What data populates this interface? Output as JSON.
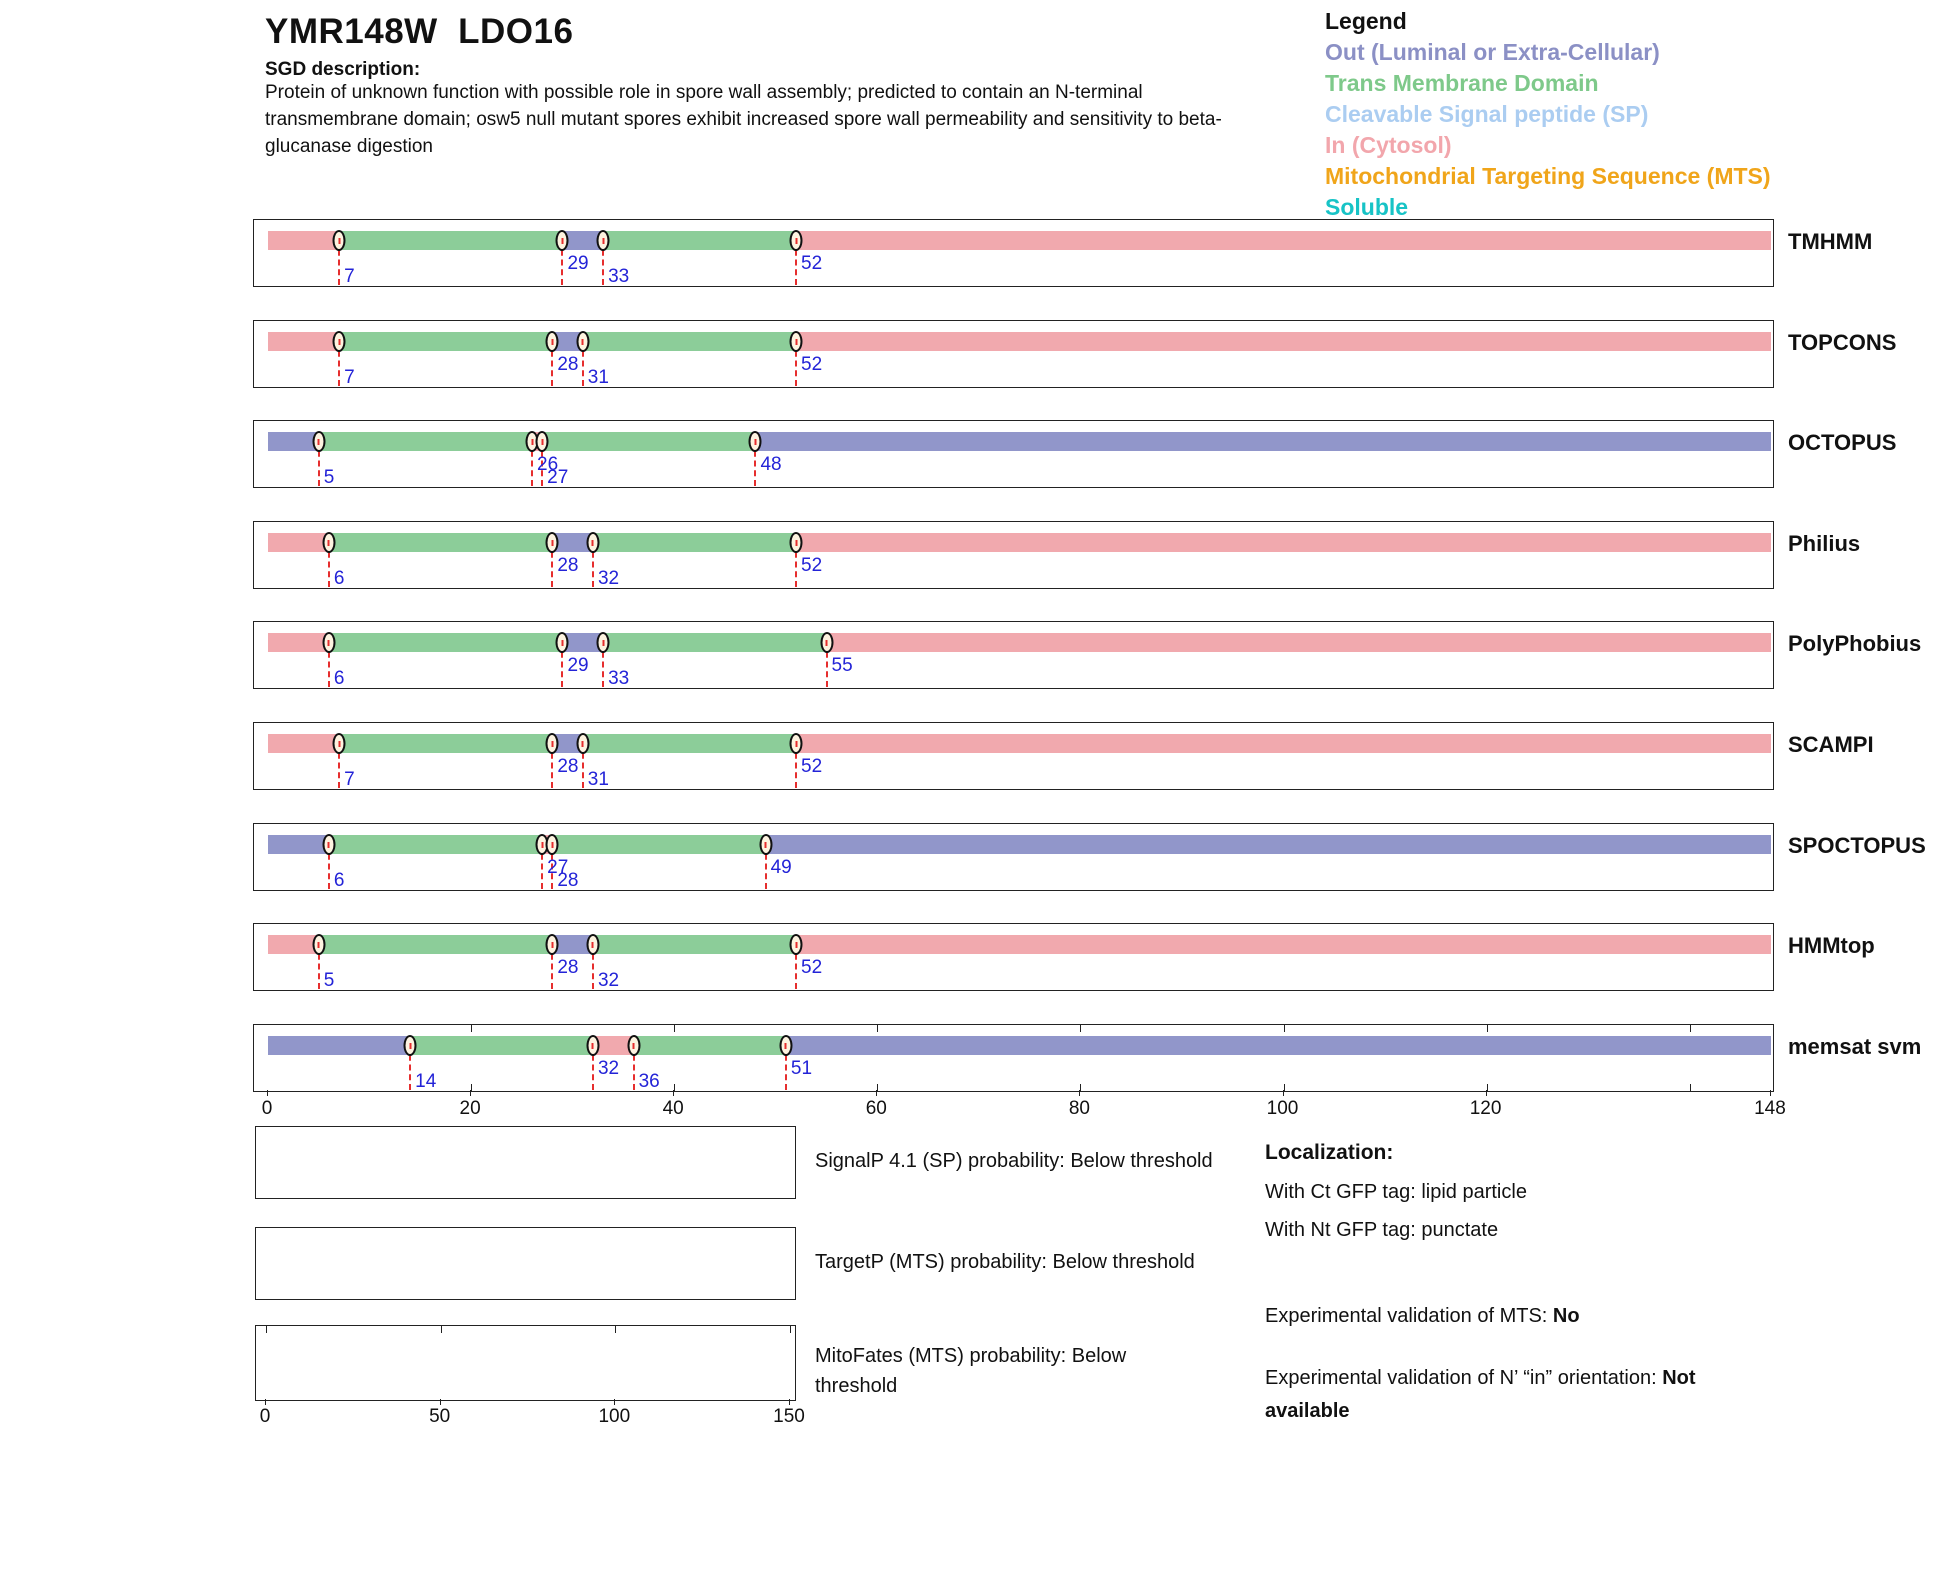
{
  "header": {
    "title": "YMR148W  LDO16",
    "sgd_label": "SGD description:",
    "description": "Protein of unknown function with possible role in spore wall assembly; predicted to contain an N-terminal transmembrane domain; osw5 null mutant spores exhibit increased spore wall permeability and sensitivity to beta-glucanase digestion"
  },
  "legend": {
    "title": "Legend",
    "items": [
      {
        "key": "out",
        "label": "Out (Luminal or Extra-Cellular)",
        "color": "#8b90c5"
      },
      {
        "key": "tm",
        "label": "Trans Membrane Domain",
        "color": "#7ec98a"
      },
      {
        "key": "sp",
        "label": "Cleavable Signal peptide (SP)",
        "color": "#abcdf1"
      },
      {
        "key": "in",
        "label": "In (Cytosol)",
        "color": "#f2a6ac"
      },
      {
        "key": "mts",
        "label": "Mitochondrial Targeting Sequence (MTS)",
        "color": "#f0a51a"
      },
      {
        "key": "soluble",
        "label": "Soluble",
        "color": "#17c3c6"
      }
    ]
  },
  "chart_data": {
    "type": "topology-tracks",
    "x_axis": {
      "min": 0,
      "max": 148,
      "ticks": [
        0,
        20,
        40,
        60,
        80,
        100,
        120,
        148
      ]
    },
    "segment_colors": {
      "in": "#f1a9ae",
      "tm": "#8ccd99",
      "out": "#9196ca"
    },
    "marker_style": {
      "line_color": "#e62e2e",
      "number_color": "#2323d7",
      "dot_fill": "#fdf3e0"
    },
    "tracks": [
      {
        "name": "TMHMM",
        "segments": [
          {
            "type": "in",
            "start": 0,
            "end": 7
          },
          {
            "type": "tm",
            "start": 7,
            "end": 29
          },
          {
            "type": "out",
            "start": 29,
            "end": 33
          },
          {
            "type": "tm",
            "start": 33,
            "end": 52
          },
          {
            "type": "in",
            "start": 52,
            "end": 148
          }
        ],
        "markers": [
          {
            "pos": 7,
            "level": "low"
          },
          {
            "pos": 29,
            "level": "high"
          },
          {
            "pos": 33,
            "level": "low"
          },
          {
            "pos": 52,
            "level": "high"
          }
        ]
      },
      {
        "name": "TOPCONS",
        "segments": [
          {
            "type": "in",
            "start": 0,
            "end": 7
          },
          {
            "type": "tm",
            "start": 7,
            "end": 28
          },
          {
            "type": "out",
            "start": 28,
            "end": 31
          },
          {
            "type": "tm",
            "start": 31,
            "end": 52
          },
          {
            "type": "in",
            "start": 52,
            "end": 148
          }
        ],
        "markers": [
          {
            "pos": 7,
            "level": "low"
          },
          {
            "pos": 28,
            "level": "high"
          },
          {
            "pos": 31,
            "level": "low"
          },
          {
            "pos": 52,
            "level": "high"
          }
        ]
      },
      {
        "name": "OCTOPUS",
        "segments": [
          {
            "type": "out",
            "start": 0,
            "end": 5
          },
          {
            "type": "tm",
            "start": 5,
            "end": 26
          },
          {
            "type": "in",
            "start": 26,
            "end": 27
          },
          {
            "type": "tm",
            "start": 27,
            "end": 48
          },
          {
            "type": "out",
            "start": 48,
            "end": 148
          }
        ],
        "markers": [
          {
            "pos": 5,
            "level": "low"
          },
          {
            "pos": 26,
            "level": "high"
          },
          {
            "pos": 27,
            "level": "low"
          },
          {
            "pos": 48,
            "level": "high"
          }
        ]
      },
      {
        "name": "Philius",
        "segments": [
          {
            "type": "in",
            "start": 0,
            "end": 6
          },
          {
            "type": "tm",
            "start": 6,
            "end": 28
          },
          {
            "type": "out",
            "start": 28,
            "end": 32
          },
          {
            "type": "tm",
            "start": 32,
            "end": 52
          },
          {
            "type": "in",
            "start": 52,
            "end": 148
          }
        ],
        "markers": [
          {
            "pos": 6,
            "level": "low"
          },
          {
            "pos": 28,
            "level": "high"
          },
          {
            "pos": 32,
            "level": "low"
          },
          {
            "pos": 52,
            "level": "high"
          }
        ]
      },
      {
        "name": "PolyPhobius",
        "segments": [
          {
            "type": "in",
            "start": 0,
            "end": 6
          },
          {
            "type": "tm",
            "start": 6,
            "end": 29
          },
          {
            "type": "out",
            "start": 29,
            "end": 33
          },
          {
            "type": "tm",
            "start": 33,
            "end": 55
          },
          {
            "type": "in",
            "start": 55,
            "end": 148
          }
        ],
        "markers": [
          {
            "pos": 6,
            "level": "low"
          },
          {
            "pos": 29,
            "level": "high"
          },
          {
            "pos": 33,
            "level": "low"
          },
          {
            "pos": 55,
            "level": "high"
          }
        ]
      },
      {
        "name": "SCAMPI",
        "segments": [
          {
            "type": "in",
            "start": 0,
            "end": 7
          },
          {
            "type": "tm",
            "start": 7,
            "end": 28
          },
          {
            "type": "out",
            "start": 28,
            "end": 31
          },
          {
            "type": "tm",
            "start": 31,
            "end": 52
          },
          {
            "type": "in",
            "start": 52,
            "end": 148
          }
        ],
        "markers": [
          {
            "pos": 7,
            "level": "low"
          },
          {
            "pos": 28,
            "level": "high"
          },
          {
            "pos": 31,
            "level": "low"
          },
          {
            "pos": 52,
            "level": "high"
          }
        ]
      },
      {
        "name": "SPOCTOPUS",
        "segments": [
          {
            "type": "out",
            "start": 0,
            "end": 6
          },
          {
            "type": "tm",
            "start": 6,
            "end": 27
          },
          {
            "type": "in",
            "start": 27,
            "end": 28
          },
          {
            "type": "tm",
            "start": 28,
            "end": 49
          },
          {
            "type": "out",
            "start": 49,
            "end": 148
          }
        ],
        "markers": [
          {
            "pos": 6,
            "level": "low"
          },
          {
            "pos": 27,
            "level": "high"
          },
          {
            "pos": 28,
            "level": "low"
          },
          {
            "pos": 49,
            "level": "high"
          }
        ]
      },
      {
        "name": "HMMtop",
        "segments": [
          {
            "type": "in",
            "start": 0,
            "end": 5
          },
          {
            "type": "tm",
            "start": 5,
            "end": 28
          },
          {
            "type": "out",
            "start": 28,
            "end": 32
          },
          {
            "type": "tm",
            "start": 32,
            "end": 52
          },
          {
            "type": "in",
            "start": 52,
            "end": 148
          }
        ],
        "markers": [
          {
            "pos": 5,
            "level": "low"
          },
          {
            "pos": 28,
            "level": "high"
          },
          {
            "pos": 32,
            "level": "low"
          },
          {
            "pos": 52,
            "level": "high"
          }
        ]
      },
      {
        "name": "memsat svm",
        "has_ruler": true,
        "segments": [
          {
            "type": "out",
            "start": 0,
            "end": 14
          },
          {
            "type": "tm",
            "start": 14,
            "end": 32
          },
          {
            "type": "in",
            "start": 32,
            "end": 36
          },
          {
            "type": "tm",
            "start": 36,
            "end": 51
          },
          {
            "type": "out",
            "start": 51,
            "end": 148
          }
        ],
        "markers": [
          {
            "pos": 14,
            "level": "low"
          },
          {
            "pos": 32,
            "level": "high"
          },
          {
            "pos": 36,
            "level": "low"
          },
          {
            "pos": 51,
            "level": "high"
          }
        ]
      }
    ]
  },
  "probability_plots": [
    {
      "name": "signalp",
      "label": "SignalP 4.1 (SP) probability: Below threshold"
    },
    {
      "name": "targetp",
      "label": "TargetP (MTS) probability: Below threshold"
    },
    {
      "name": "mitofates",
      "label": "MitoFates (MTS) probability: Below threshold",
      "axis_ticks": [
        0,
        50,
        100,
        150
      ]
    }
  ],
  "localization": {
    "title": "Localization:",
    "ct_line": "With Ct GFP tag: lipid particle",
    "nt_line": "With Nt GFP tag: punctate",
    "mts_label": "Experimental validation of MTS: ",
    "mts_value": "No",
    "orientation_label": "Experimental validation of N’ “in” orientation: ",
    "orientation_value": "Not available"
  }
}
